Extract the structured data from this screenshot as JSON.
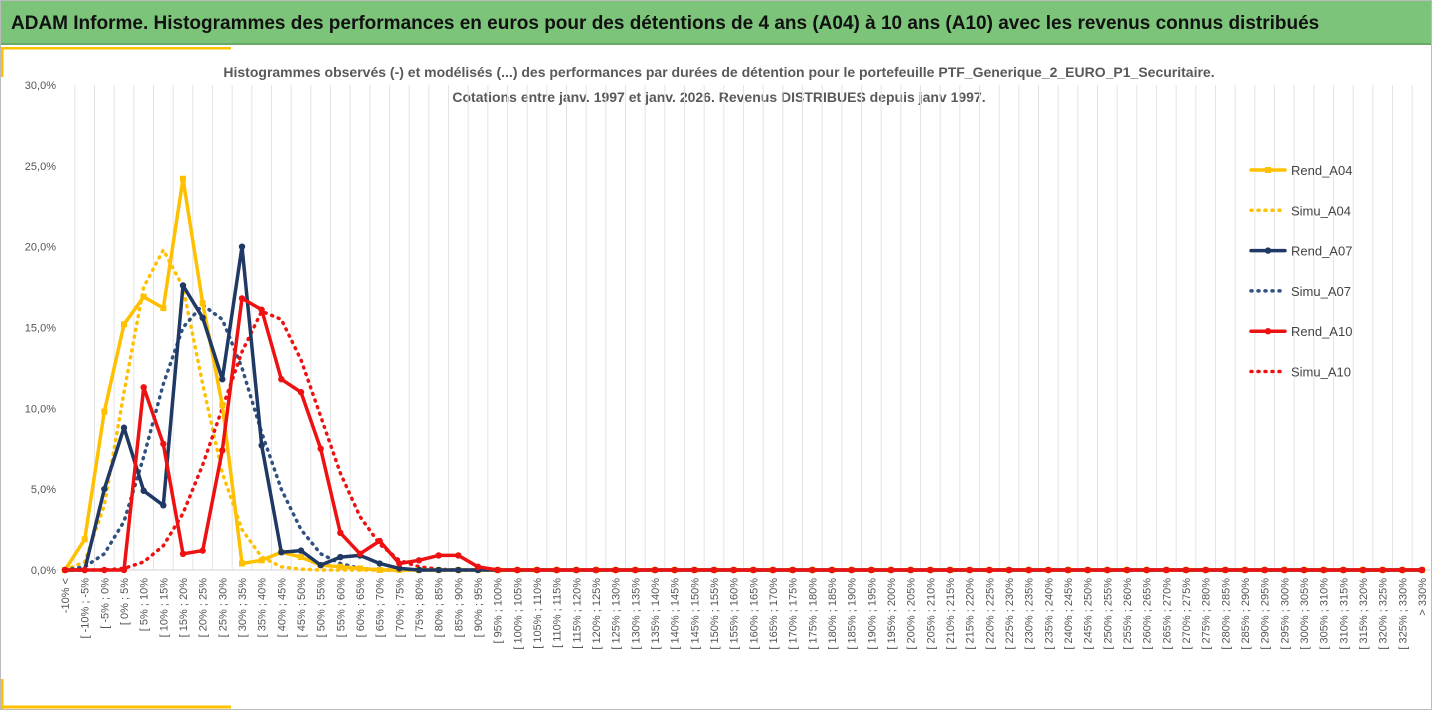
{
  "header": {
    "title": "ADAM Informe. Histogrammes des performances en euros pour des détentions de 4 ans (A04) à 10 ans (A10) avec les revenus connus distribués"
  },
  "chart_data": {
    "type": "line",
    "title": "Histogrammes observés (-) et modélisés (...) des performances par durées de détention pour le portefeuille PTF_Generique_2_EURO_P1_Securitaire.",
    "subtitle": "Cotations entre janv. 1997 et janv. 2026. Revenus DISTRIBUES depuis janv 1997.",
    "categories": [
      "-10% <",
      "[ -10% ; -5%",
      "[ -5% ; 0%",
      "[ 0% ; 5%",
      "[ 5% ; 10%",
      "[ 10% ; 15%",
      "[ 15% ; 20%",
      "[ 20% ; 25%",
      "[ 25% ; 30%",
      "[ 30% ; 35%",
      "[ 35% ; 40%",
      "[ 40% ; 45%",
      "[ 45% ; 50%",
      "[ 50% ; 55%",
      "[ 55% ; 60%",
      "[ 60% ; 65%",
      "[ 65% ; 70%",
      "[ 70% ; 75%",
      "[ 75% ; 80%",
      "[ 80% ; 85%",
      "[ 85% ; 90%",
      "[ 90% ; 95%",
      "[ 95% ; 100%",
      "[ 100% ; 105%",
      "[ 105% ; 110%",
      "[ 110% ; 115%",
      "[ 115% ; 120%",
      "[ 120% ; 125%",
      "[ 125% ; 130%",
      "[ 130% ; 135%",
      "[ 135% ; 140%",
      "[ 140% ; 145%",
      "[ 145% ; 150%",
      "[ 150% ; 155%",
      "[ 155% ; 160%",
      "[ 160% ; 165%",
      "[ 165% ; 170%",
      "[ 170% ; 175%",
      "[ 175% ; 180%",
      "[ 180% ; 185%",
      "[ 185% ; 190%",
      "[ 190% ; 195%",
      "[ 195% ; 200%",
      "[ 200% ; 205%",
      "[ 205% ; 210%",
      "[ 210% ; 215%",
      "[ 215% ; 220%",
      "[ 220% ; 225%",
      "[ 225% ; 230%",
      "[ 230% ; 235%",
      "[ 235% ; 240%",
      "[ 240% ; 245%",
      "[ 245% ; 250%",
      "[ 250% ; 255%",
      "[ 255% ; 260%",
      "[ 260% ; 265%",
      "[ 265% ; 270%",
      "[ 270% ; 275%",
      "[ 275% ; 280%",
      "[ 280% ; 285%",
      "[ 285% ; 290%",
      "[ 290% ; 295%",
      "[ 295% ; 300%",
      "[ 300% ; 305%",
      "[ 305% ; 310%",
      "[ 310% ; 315%",
      "[ 315% ; 320%",
      "[ 320% ; 325%",
      "[ 325% ; 330%",
      "> 330%"
    ],
    "series": [
      {
        "name": "Rend_A04",
        "color": "#ffc000",
        "dash": "solid",
        "marker": "square",
        "values": [
          0,
          1.9,
          9.8,
          15.2,
          16.9,
          16.2,
          24.2,
          16.5,
          10.2,
          0.4,
          0.6,
          1.1,
          0.8,
          0.3,
          0.2,
          0.1,
          0,
          0,
          0,
          0,
          0,
          0,
          0,
          0,
          0,
          0,
          0,
          0,
          0,
          0,
          0,
          0,
          0,
          0,
          0,
          0,
          0,
          0,
          0,
          0,
          0,
          0,
          0,
          0,
          0,
          0,
          0,
          0,
          0,
          0,
          0,
          0,
          0,
          0,
          0,
          0,
          0,
          0,
          0,
          0,
          0,
          0,
          0,
          0,
          0,
          0,
          0,
          0,
          0,
          0
        ]
      },
      {
        "name": "Simu_A04",
        "color": "#ffc000",
        "dash": "dotted",
        "marker": "none",
        "values": [
          0,
          0.5,
          4,
          11,
          17.5,
          19.8,
          17.5,
          11.5,
          6,
          2.5,
          0.8,
          0.2,
          0.05,
          0,
          0,
          0,
          0,
          0,
          0,
          0,
          0,
          0,
          0,
          0,
          0,
          0,
          0,
          0,
          0,
          0,
          0,
          0,
          0,
          0,
          0,
          0,
          0,
          0,
          0,
          0,
          0,
          0,
          0,
          0,
          0,
          0,
          0,
          0,
          0,
          0,
          0,
          0,
          0,
          0,
          0,
          0,
          0,
          0,
          0,
          0,
          0,
          0,
          0,
          0,
          0,
          0,
          0,
          0,
          0,
          0
        ]
      },
      {
        "name": "Rend_A07",
        "color": "#1f3864",
        "dash": "solid",
        "marker": "circle",
        "values": [
          0,
          0,
          5,
          8.8,
          4.9,
          4,
          17.6,
          15.6,
          11.8,
          20,
          7.7,
          1.1,
          1.2,
          0.3,
          0.8,
          0.9,
          0.4,
          0.1,
          0,
          0,
          0,
          0,
          0,
          0,
          0,
          0,
          0,
          0,
          0,
          0,
          0,
          0,
          0,
          0,
          0,
          0,
          0,
          0,
          0,
          0,
          0,
          0,
          0,
          0,
          0,
          0,
          0,
          0,
          0,
          0,
          0,
          0,
          0,
          0,
          0,
          0,
          0,
          0,
          0,
          0,
          0,
          0,
          0,
          0,
          0,
          0,
          0,
          0,
          0,
          0
        ]
      },
      {
        "name": "Simu_A07",
        "color": "#2f5080",
        "dash": "dotted",
        "marker": "none",
        "values": [
          0,
          0.2,
          1,
          3,
          7,
          11.5,
          15,
          16.4,
          15.5,
          12.5,
          8.5,
          5,
          2.5,
          1,
          0.4,
          0.1,
          0,
          0,
          0,
          0,
          0,
          0,
          0,
          0,
          0,
          0,
          0,
          0,
          0,
          0,
          0,
          0,
          0,
          0,
          0,
          0,
          0,
          0,
          0,
          0,
          0,
          0,
          0,
          0,
          0,
          0,
          0,
          0,
          0,
          0,
          0,
          0,
          0,
          0,
          0,
          0,
          0,
          0,
          0,
          0,
          0,
          0,
          0,
          0,
          0,
          0,
          0,
          0,
          0,
          0
        ]
      },
      {
        "name": "Rend_A10",
        "color": "#ee1111",
        "dash": "solid",
        "marker": "circle",
        "values": [
          0,
          0,
          0,
          0,
          11.3,
          7.8,
          1,
          1.2,
          7.4,
          16.8,
          16.1,
          11.8,
          11,
          7.5,
          2.3,
          1,
          1.8,
          0.4,
          0.6,
          0.9,
          0.9,
          0.2,
          0,
          0,
          0,
          0,
          0,
          0,
          0,
          0,
          0,
          0,
          0,
          0,
          0,
          0,
          0,
          0,
          0,
          0,
          0,
          0,
          0,
          0,
          0,
          0,
          0,
          0,
          0,
          0,
          0,
          0,
          0,
          0,
          0,
          0,
          0,
          0,
          0,
          0,
          0,
          0,
          0,
          0,
          0,
          0,
          0,
          0,
          0,
          0
        ]
      },
      {
        "name": "Simu_A10",
        "color": "#ee1111",
        "dash": "dotted",
        "marker": "none",
        "values": [
          0,
          0,
          0,
          0.1,
          0.5,
          1.5,
          3.5,
          6.5,
          10,
          13.5,
          16,
          15.5,
          13,
          9.5,
          6,
          3.3,
          1.6,
          0.6,
          0.2,
          0.05,
          0,
          0,
          0,
          0,
          0,
          0,
          0,
          0,
          0,
          0,
          0,
          0,
          0,
          0,
          0,
          0,
          0,
          0,
          0,
          0,
          0,
          0,
          0,
          0,
          0,
          0,
          0,
          0,
          0,
          0,
          0,
          0,
          0,
          0,
          0,
          0,
          0,
          0,
          0,
          0,
          0,
          0,
          0,
          0,
          0,
          0,
          0,
          0,
          0,
          0
        ]
      }
    ],
    "ylim": [
      0,
      30
    ],
    "yticks": [
      {
        "value": 0,
        "label": "0,0%"
      },
      {
        "value": 5,
        "label": "5,0%"
      },
      {
        "value": 10,
        "label": "10,0%"
      },
      {
        "value": 15,
        "label": "15,0%"
      },
      {
        "value": 20,
        "label": "20,0%"
      },
      {
        "value": 25,
        "label": "25,0%"
      },
      {
        "value": 30,
        "label": "30,0%"
      }
    ],
    "grid": "vertical",
    "legend": "right"
  }
}
